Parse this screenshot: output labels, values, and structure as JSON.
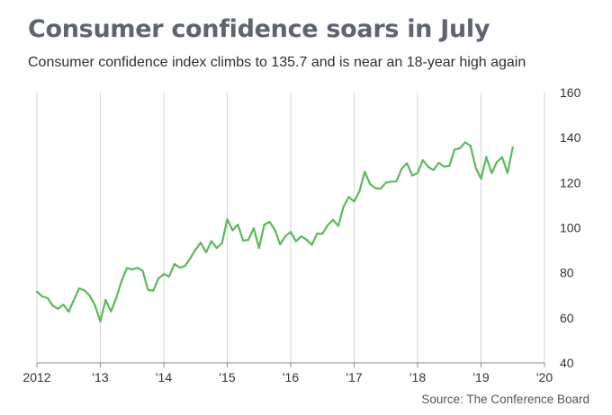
{
  "title": "Consumer confidence soars in July",
  "subtitle": "Consumer confidence index climbs to 135.7 and is near an 18-year high again",
  "source": "Source: The Conference Board",
  "colors": {
    "line": "#5cb85c",
    "grid": "#d6d6d6",
    "text": "#333333"
  },
  "chart_data": {
    "type": "line",
    "title": "Consumer confidence soars in July",
    "subtitle": "Consumer confidence index climbs to 135.7 and is near an 18-year high again",
    "xlabel": "",
    "ylabel": "",
    "xlim": [
      2012,
      2020
    ],
    "ylim": [
      40,
      160
    ],
    "x_ticks": [
      2012,
      2013,
      2014,
      2015,
      2016,
      2017,
      2018,
      2019,
      2020
    ],
    "x_tick_labels": [
      "2012",
      "'13",
      "'14",
      "'15",
      "'16",
      "'17",
      "'18",
      "'19",
      "'20"
    ],
    "y_ticks": [
      40,
      60,
      80,
      100,
      120,
      140,
      160
    ],
    "y_tick_labels": [
      "40",
      "60",
      "80",
      "100",
      "120",
      "140",
      "160"
    ],
    "y_axis_side": "right",
    "grid": "vertical",
    "series": [
      {
        "x": [
          2012.0,
          2012.083,
          2012.167,
          2012.25,
          2012.333,
          2012.417,
          2012.5,
          2012.583,
          2012.667,
          2012.75,
          2012.833,
          2012.917,
          2013.0,
          2013.083,
          2013.167,
          2013.25,
          2013.333,
          2013.417,
          2013.5,
          2013.583,
          2013.667,
          2013.75,
          2013.833,
          2013.917,
          2014.0,
          2014.083,
          2014.167,
          2014.25,
          2014.333,
          2014.417,
          2014.5,
          2014.583,
          2014.667,
          2014.75,
          2014.833,
          2014.917,
          2015.0,
          2015.083,
          2015.167,
          2015.25,
          2015.333,
          2015.417,
          2015.5,
          2015.583,
          2015.667,
          2015.75,
          2015.833,
          2015.917,
          2016.0,
          2016.083,
          2016.167,
          2016.25,
          2016.333,
          2016.417,
          2016.5,
          2016.583,
          2016.667,
          2016.75,
          2016.833,
          2016.917,
          2017.0,
          2017.083,
          2017.167,
          2017.25,
          2017.333,
          2017.417,
          2017.5,
          2017.583,
          2017.667,
          2017.75,
          2017.833,
          2017.917,
          2018.0,
          2018.083,
          2018.167,
          2018.25,
          2018.333,
          2018.417,
          2018.5,
          2018.583,
          2018.667,
          2018.75,
          2018.833,
          2018.917,
          2019.0,
          2019.083,
          2019.167,
          2019.25,
          2019.333,
          2019.417,
          2019.5
        ],
        "values": [
          71.6,
          69.5,
          68.8,
          65.4,
          64.0,
          65.9,
          62.7,
          68.0,
          73.1,
          72.2,
          69.8,
          65.5,
          58.4,
          68.0,
          62.8,
          68.8,
          76.2,
          82.1,
          81.5,
          82.2,
          80.9,
          72.4,
          72.0,
          77.5,
          79.4,
          78.3,
          83.9,
          82.3,
          83.0,
          86.4,
          90.3,
          93.4,
          89.0,
          94.1,
          91.0,
          93.1,
          103.8,
          98.8,
          101.4,
          94.3,
          94.6,
          99.8,
          91.0,
          101.3,
          102.6,
          99.1,
          92.6,
          96.3,
          98.1,
          94.0,
          96.2,
          94.7,
          92.4,
          97.4,
          97.3,
          101.1,
          103.5,
          100.8,
          109.4,
          113.7,
          111.6,
          116.1,
          124.9,
          119.4,
          117.6,
          117.3,
          120.0,
          120.4,
          120.6,
          126.2,
          128.6,
          123.1,
          124.3,
          130.0,
          127.0,
          125.6,
          128.8,
          127.1,
          127.4,
          134.7,
          135.3,
          137.9,
          136.4,
          126.6,
          121.7,
          131.4,
          124.2,
          129.2,
          131.3,
          124.3,
          135.7
        ]
      }
    ]
  }
}
